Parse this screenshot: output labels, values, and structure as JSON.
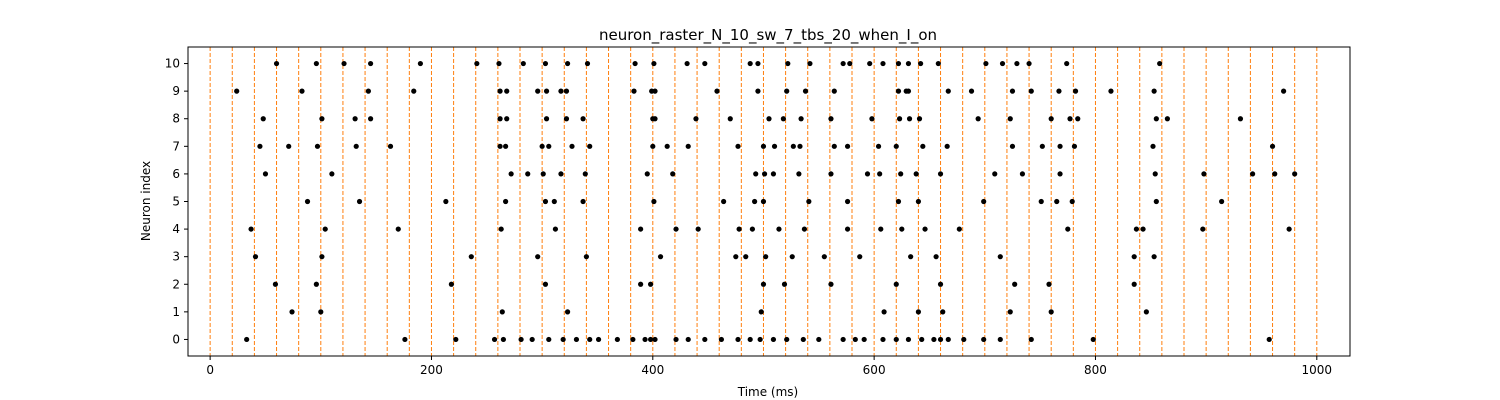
{
  "chart_data": {
    "type": "scatter",
    "title": "neuron_raster_N_10_sw_7_tbs_20_when_I_on",
    "xlabel": "Time (ms)",
    "ylabel": "Neuron index",
    "xlim": [
      -20,
      1030
    ],
    "ylim": [
      -0.6,
      10.6
    ],
    "xticks": [
      0,
      200,
      400,
      600,
      800,
      1000
    ],
    "yticks": [
      0,
      1,
      2,
      3,
      4,
      5,
      6,
      7,
      8,
      9,
      10
    ],
    "grid": false,
    "marker_color": "#000000",
    "vline_color": "#ff7f0e",
    "vlines": [
      0,
      20,
      40,
      60,
      80,
      100,
      120,
      140,
      160,
      180,
      200,
      220,
      240,
      260,
      280,
      300,
      320,
      340,
      360,
      380,
      400,
      420,
      440,
      460,
      480,
      500,
      520,
      540,
      560,
      580,
      600,
      620,
      640,
      660,
      680,
      700,
      720,
      740,
      760,
      780,
      800,
      820,
      840,
      860,
      880,
      900,
      920,
      940,
      960,
      980,
      1000
    ],
    "series": [
      {
        "neuron": 0,
        "times": [
          33,
          176,
          222,
          257,
          265,
          281,
          291,
          306,
          319,
          331,
          343,
          351,
          368,
          382,
          393,
          398,
          402,
          421,
          432,
          447,
          462,
          477,
          488,
          497,
          509,
          521,
          536,
          550,
          572,
          583,
          591,
          608,
          620,
          631,
          643,
          654,
          660,
          667,
          681,
          699,
          714,
          742,
          798,
          957
        ]
      },
      {
        "neuron": 1,
        "times": [
          74,
          100,
          264,
          323,
          498,
          609,
          640,
          662,
          723,
          760,
          846
        ]
      },
      {
        "neuron": 2,
        "times": [
          59,
          96,
          218,
          303,
          389,
          398,
          500,
          519,
          561,
          620,
          660,
          727,
          758,
          835
        ]
      },
      {
        "neuron": 3,
        "times": [
          41,
          101,
          236,
          296,
          340,
          407,
          475,
          484,
          502,
          526,
          555,
          587,
          633,
          656,
          714,
          835,
          853
        ]
      },
      {
        "neuron": 4,
        "times": [
          37,
          104,
          170,
          263,
          312,
          389,
          421,
          441,
          478,
          490,
          514,
          537,
          576,
          606,
          625,
          646,
          677,
          775,
          837,
          843,
          897,
          975
        ]
      },
      {
        "neuron": 5,
        "times": [
          88,
          135,
          213,
          267,
          303,
          311,
          337,
          401,
          464,
          492,
          500,
          541,
          576,
          622,
          640,
          699,
          751,
          765,
          779,
          855,
          914
        ]
      },
      {
        "neuron": 6,
        "times": [
          50,
          110,
          272,
          287,
          301,
          317,
          339,
          395,
          418,
          493,
          501,
          509,
          532,
          561,
          594,
          605,
          624,
          638,
          660,
          709,
          734,
          768,
          854,
          898,
          942,
          962,
          980
        ]
      },
      {
        "neuron": 7,
        "times": [
          45,
          71,
          97,
          132,
          163,
          262,
          267,
          300,
          306,
          327,
          343,
          400,
          413,
          432,
          477,
          500,
          510,
          527,
          533,
          564,
          576,
          604,
          620,
          644,
          666,
          725,
          752,
          768,
          781,
          852,
          960
        ]
      },
      {
        "neuron": 8,
        "times": [
          48,
          101,
          131,
          145,
          262,
          268,
          304,
          322,
          337,
          400,
          402,
          439,
          470,
          505,
          518,
          534,
          561,
          598,
          623,
          632,
          641,
          694,
          723,
          760,
          777,
          784,
          855,
          865,
          931
        ]
      },
      {
        "neuron": 9,
        "times": [
          24,
          83,
          143,
          184,
          262,
          268,
          296,
          304,
          317,
          322,
          383,
          399,
          402,
          458,
          495,
          521,
          538,
          564,
          622,
          629,
          631,
          667,
          688,
          725,
          742,
          767,
          782,
          814,
          853,
          970
        ]
      },
      {
        "neuron": 10,
        "times": [
          60,
          96,
          121,
          145,
          190,
          241,
          261,
          283,
          303,
          323,
          341,
          384,
          401,
          431,
          447,
          488,
          495,
          522,
          542,
          572,
          578,
          596,
          608,
          622,
          631,
          642,
          658,
          701,
          716,
          729,
          740,
          774,
          858
        ]
      }
    ]
  }
}
